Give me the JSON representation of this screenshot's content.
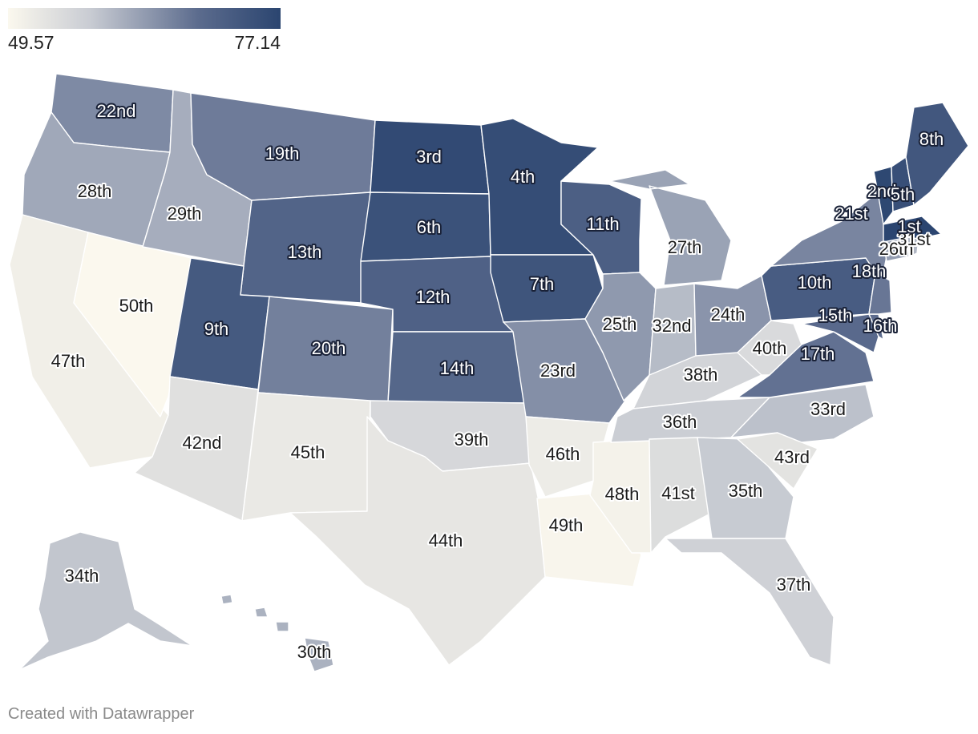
{
  "legend": {
    "min_label": "49.57",
    "max_label": "77.14",
    "min": 49.57,
    "max": 77.14,
    "color_low": "#fbf8ee",
    "color_mid_low": "#c9ccd3",
    "color_mid_high": "#5b6b8d",
    "color_high": "#2b4570"
  },
  "credit": "Created with Datawrapper",
  "states": [
    {
      "id": "WA",
      "rank": "22nd"
    },
    {
      "id": "OR",
      "rank": "28th"
    },
    {
      "id": "CA",
      "rank": "47th"
    },
    {
      "id": "NV",
      "rank": "50th"
    },
    {
      "id": "ID",
      "rank": "29th"
    },
    {
      "id": "MT",
      "rank": "19th"
    },
    {
      "id": "WY",
      "rank": "13th"
    },
    {
      "id": "UT",
      "rank": "9th"
    },
    {
      "id": "AZ",
      "rank": "42nd"
    },
    {
      "id": "CO",
      "rank": "20th"
    },
    {
      "id": "NM",
      "rank": "45th"
    },
    {
      "id": "ND",
      "rank": "3rd"
    },
    {
      "id": "SD",
      "rank": "6th"
    },
    {
      "id": "NE",
      "rank": "12th"
    },
    {
      "id": "KS",
      "rank": "14th"
    },
    {
      "id": "OK",
      "rank": "39th"
    },
    {
      "id": "TX",
      "rank": "44th"
    },
    {
      "id": "MN",
      "rank": "4th"
    },
    {
      "id": "IA",
      "rank": "7th"
    },
    {
      "id": "MO",
      "rank": "23rd"
    },
    {
      "id": "AR",
      "rank": "46th"
    },
    {
      "id": "LA",
      "rank": "49th"
    },
    {
      "id": "WI",
      "rank": "11th"
    },
    {
      "id": "IL",
      "rank": "25th"
    },
    {
      "id": "MS",
      "rank": "48th"
    },
    {
      "id": "MI",
      "rank": "27th"
    },
    {
      "id": "IN",
      "rank": "32nd"
    },
    {
      "id": "KY",
      "rank": "38th"
    },
    {
      "id": "TN",
      "rank": "36th"
    },
    {
      "id": "AL",
      "rank": "41st"
    },
    {
      "id": "OH",
      "rank": "24th"
    },
    {
      "id": "WV",
      "rank": "40th"
    },
    {
      "id": "GA",
      "rank": "35th"
    },
    {
      "id": "FL",
      "rank": "37th"
    },
    {
      "id": "SC",
      "rank": "43rd"
    },
    {
      "id": "NC",
      "rank": "33rd"
    },
    {
      "id": "VA",
      "rank": "17th"
    },
    {
      "id": "PA",
      "rank": "10th"
    },
    {
      "id": "NY",
      "rank": "21st"
    },
    {
      "id": "MD",
      "rank": "15th"
    },
    {
      "id": "DE",
      "rank": "16th"
    },
    {
      "id": "NJ",
      "rank": "18th"
    },
    {
      "id": "CT",
      "rank": "26th"
    },
    {
      "id": "RI",
      "rank": "31st"
    },
    {
      "id": "MA",
      "rank": "1st"
    },
    {
      "id": "VT",
      "rank": "2nd"
    },
    {
      "id": "NH",
      "rank": "5th"
    },
    {
      "id": "ME",
      "rank": "8th"
    },
    {
      "id": "AK",
      "rank": "34th"
    },
    {
      "id": "HI",
      "rank": "30th"
    }
  ]
}
